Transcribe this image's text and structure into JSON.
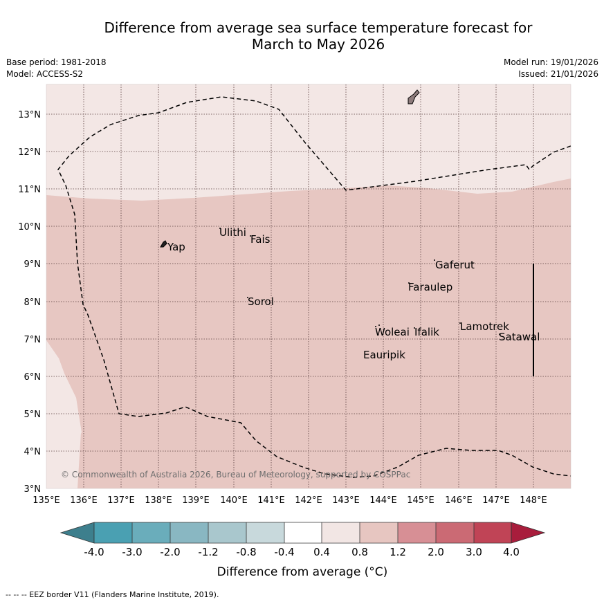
{
  "title_line1": "Difference from average sea surface temperature forecast for",
  "title_line2": "March to May 2026",
  "base_period": "Base period: 1981-2018",
  "model": "Model: ACCESS-S2",
  "model_run": "Model run: 19/01/2026",
  "issued": "Issued: 21/01/2026",
  "copyright": "© Commonwealth of Australia 2026, Bureau of Meteorology, supported by COSPPac",
  "footer_legend": "--  --  -- EEZ border V11 (Flanders Marine Institute, 2019).",
  "map": {
    "lon_range": [
      135,
      149
    ],
    "lat_range": [
      3,
      13.8
    ],
    "lon_ticks": [
      "135°E",
      "136°E",
      "137°E",
      "138°E",
      "139°E",
      "140°E",
      "141°E",
      "142°E",
      "143°E",
      "144°E",
      "145°E",
      "146°E",
      "147°E",
      "148°E"
    ],
    "lat_ticks": [
      "3°N",
      "4°N",
      "5°N",
      "6°N",
      "7°N",
      "8°N",
      "9°N",
      "10°N",
      "11°N",
      "12°N",
      "13°N"
    ],
    "places": [
      {
        "name": "Yap",
        "lon": 138.1,
        "lat": 9.5
      },
      {
        "name": "Ulithi",
        "lon": 139.7,
        "lat": 9.9
      },
      {
        "name": "Fais",
        "lon": 140.5,
        "lat": 9.75
      },
      {
        "name": "Gaferut",
        "lon": 145.4,
        "lat": 9.2
      },
      {
        "name": "Faraulep",
        "lon": 144.6,
        "lat": 8.55
      },
      {
        "name": "Sorol",
        "lon": 140.4,
        "lat": 8.15
      },
      {
        "name": "Woleai",
        "lon": 143.9,
        "lat": 7.4
      },
      {
        "name": "Ifalik",
        "lon": 144.45,
        "lat": 7.25
      },
      {
        "name": "Lamotrek",
        "lon": 146.35,
        "lat": 7.5
      },
      {
        "name": "Satawal",
        "lon": 147.03,
        "lat": 7.35
      },
      {
        "name": "Eauripik",
        "lon": 143.05,
        "lat": 6.7
      }
    ]
  },
  "colorbar": {
    "title": "Difference from average (°C)",
    "ticks": [
      "-4.0",
      "-3.0",
      "-2.0",
      "-1.2",
      "-0.8",
      "-0.4",
      "0.4",
      "0.8",
      "1.2",
      "2.0",
      "3.0",
      "4.0"
    ],
    "colors": [
      "#3d7f8d",
      "#4aa0b2",
      "#6aadbb",
      "#89b7c2",
      "#a9c7cd",
      "#c8d9dc",
      "#ffffff",
      "#f2e6e4",
      "#e7c6c1",
      "#d78f95",
      "#cb6a74",
      "#c04456",
      "#a81d3c"
    ]
  },
  "colors": {
    "weak_warm": "#f3e7e5",
    "moderate_warm": "#e7c7c2",
    "grid": "#5a3f3f"
  }
}
